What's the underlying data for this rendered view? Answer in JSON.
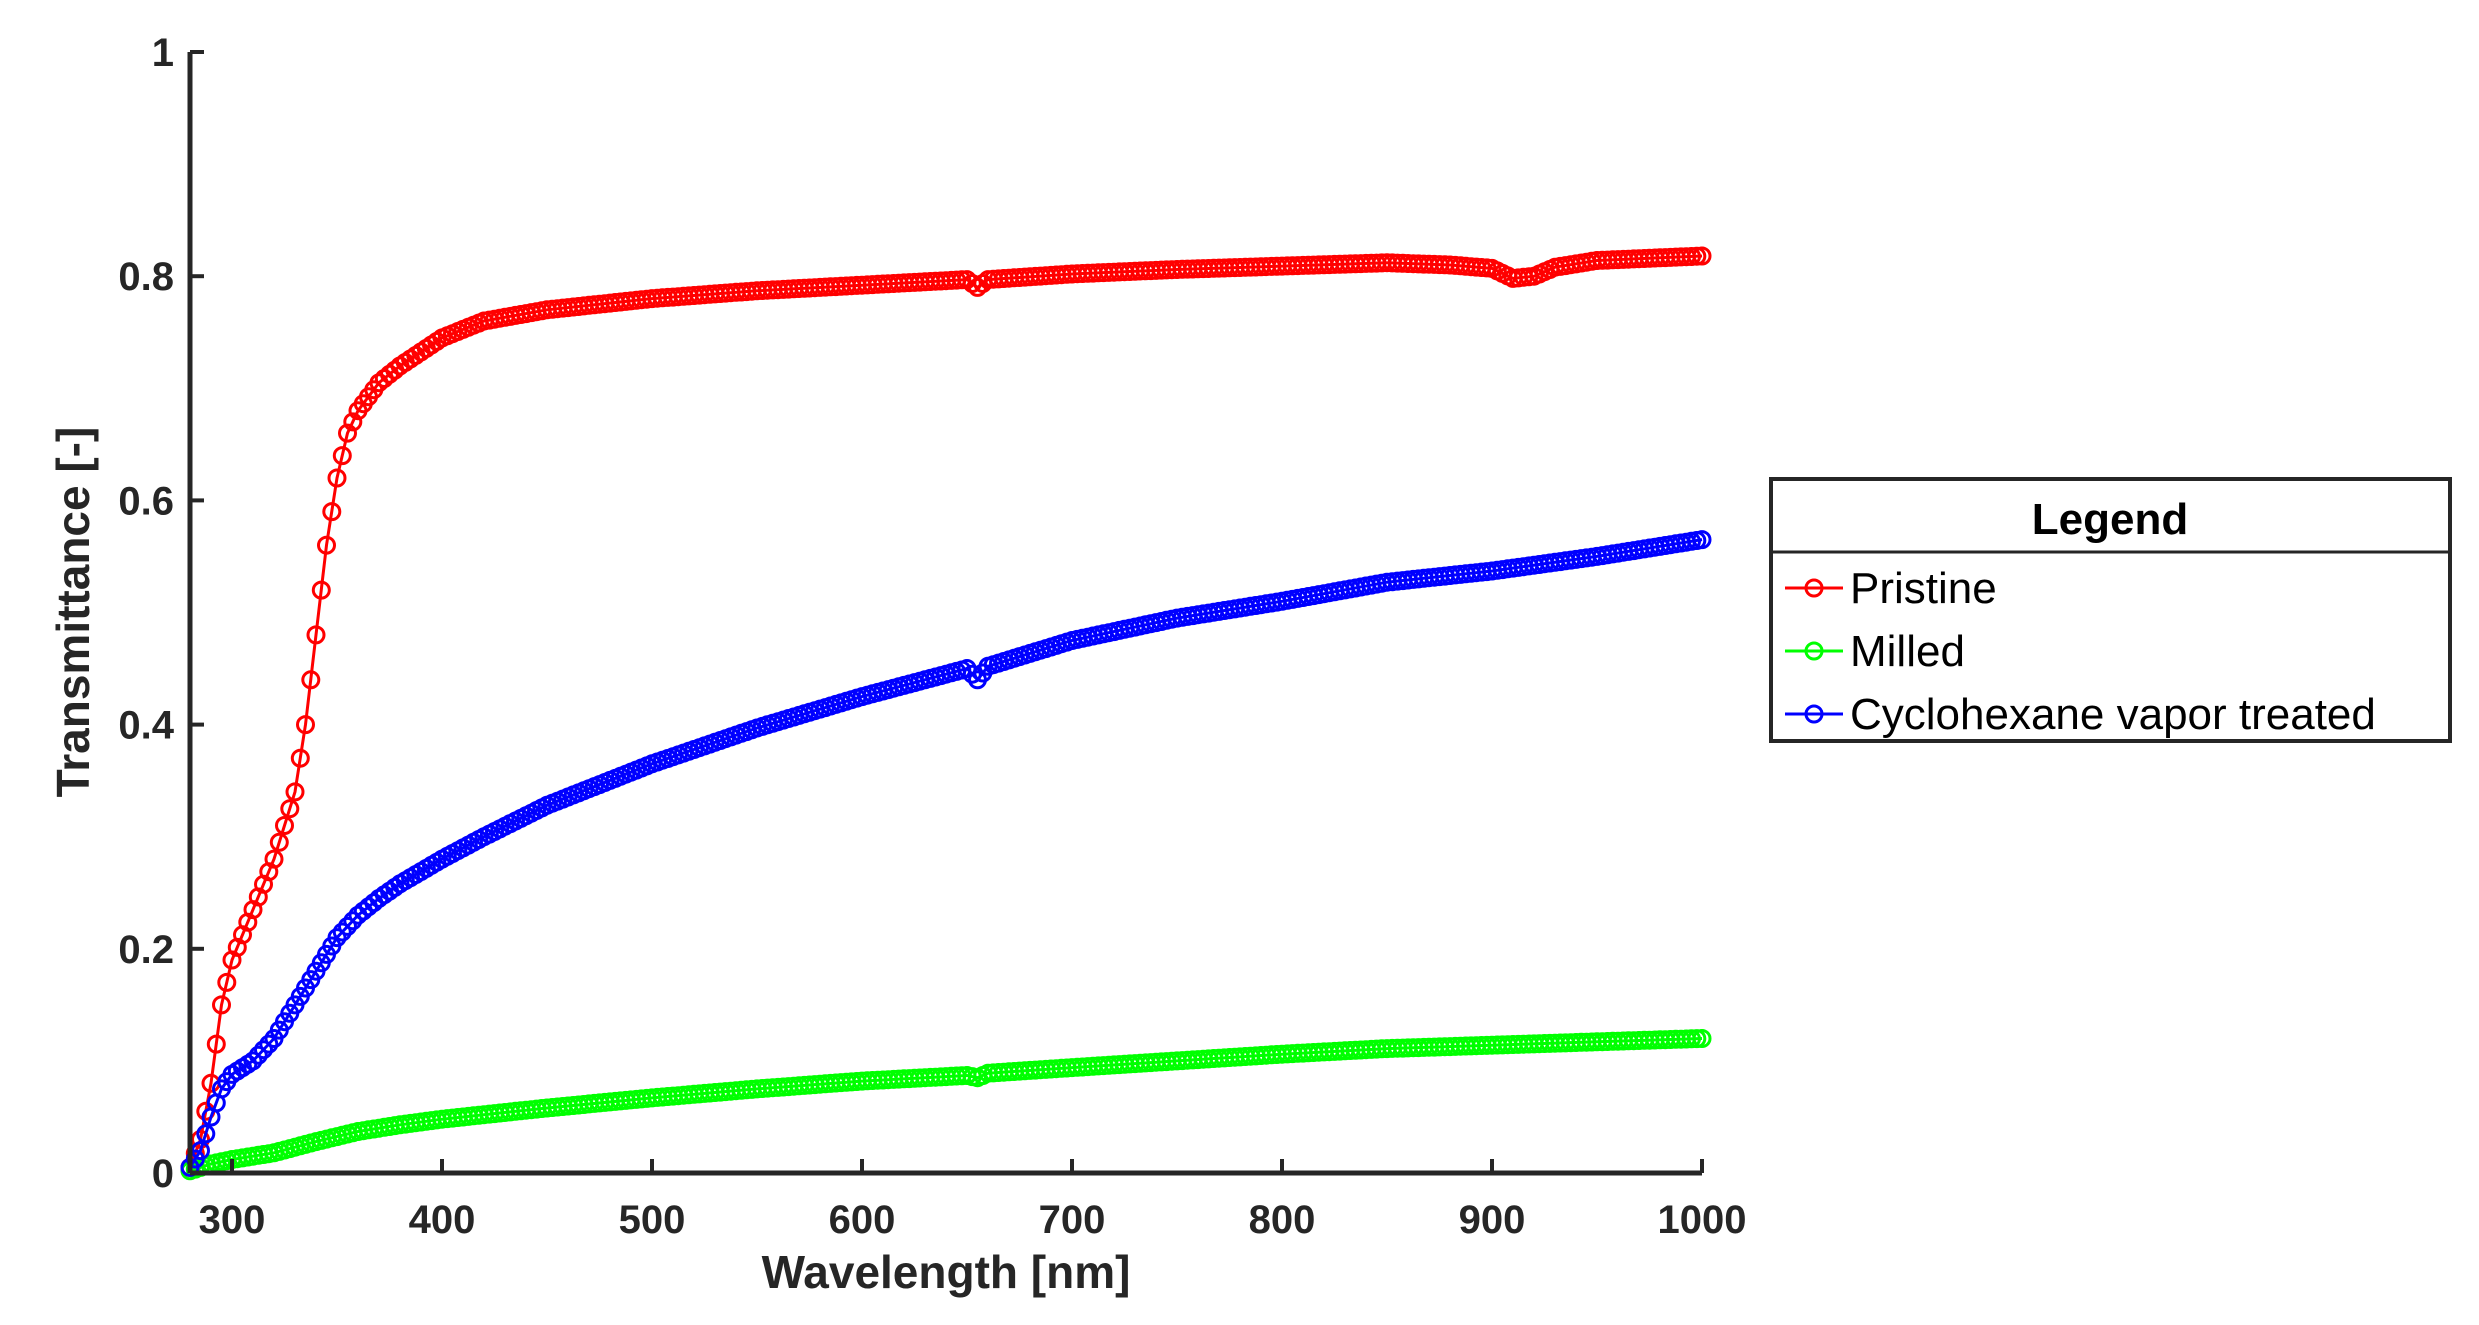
{
  "chart_data": {
    "type": "line",
    "title": "",
    "xlabel": "Wavelength [nm]",
    "ylabel": "Transmittance [-]",
    "xlim": [
      280,
      1000
    ],
    "ylim": [
      0,
      1
    ],
    "xticks": [
      300,
      400,
      500,
      600,
      700,
      800,
      900,
      1000
    ],
    "yticks": [
      0,
      0.2,
      0.4,
      0.6,
      0.8,
      1
    ],
    "ytick_labels": [
      "0",
      "0.2",
      "0.4",
      "0.6",
      "0.8",
      "1"
    ],
    "grid": false,
    "marker": "circle",
    "legend": {
      "title": "Legend",
      "position": "outside-right"
    },
    "series": [
      {
        "name": "Pristine",
        "color": "#ff0000",
        "x": [
          280,
          285,
          290,
          295,
          300,
          310,
          320,
          330,
          335,
          340,
          345,
          350,
          355,
          360,
          370,
          380,
          400,
          420,
          450,
          500,
          550,
          600,
          650,
          655,
          660,
          700,
          750,
          800,
          850,
          880,
          900,
          910,
          920,
          930,
          950,
          1000
        ],
        "y": [
          0.005,
          0.03,
          0.08,
          0.15,
          0.19,
          0.235,
          0.28,
          0.34,
          0.4,
          0.48,
          0.56,
          0.62,
          0.66,
          0.68,
          0.705,
          0.72,
          0.745,
          0.76,
          0.77,
          0.78,
          0.787,
          0.792,
          0.797,
          0.79,
          0.797,
          0.802,
          0.806,
          0.809,
          0.812,
          0.81,
          0.807,
          0.798,
          0.8,
          0.808,
          0.814,
          0.818
        ]
      },
      {
        "name": "Milled",
        "color": "#00ff00",
        "x": [
          280,
          290,
          300,
          320,
          340,
          360,
          380,
          400,
          450,
          500,
          550,
          600,
          650,
          655,
          660,
          700,
          750,
          800,
          850,
          900,
          950,
          1000
        ],
        "y": [
          0.002,
          0.008,
          0.012,
          0.018,
          0.028,
          0.037,
          0.043,
          0.048,
          0.058,
          0.067,
          0.075,
          0.082,
          0.087,
          0.085,
          0.089,
          0.094,
          0.1,
          0.106,
          0.111,
          0.114,
          0.117,
          0.12
        ]
      },
      {
        "name": "Cyclohexane vapor treated",
        "color": "#0000ff",
        "x": [
          280,
          285,
          290,
          295,
          300,
          310,
          320,
          330,
          340,
          350,
          360,
          370,
          380,
          400,
          420,
          450,
          500,
          550,
          600,
          650,
          655,
          660,
          700,
          750,
          800,
          850,
          900,
          950,
          1000
        ],
        "y": [
          0.005,
          0.02,
          0.05,
          0.075,
          0.088,
          0.1,
          0.12,
          0.15,
          0.18,
          0.21,
          0.23,
          0.245,
          0.258,
          0.28,
          0.3,
          0.328,
          0.365,
          0.397,
          0.425,
          0.45,
          0.44,
          0.452,
          0.475,
          0.495,
          0.51,
          0.527,
          0.537,
          0.55,
          0.565
        ]
      }
    ]
  }
}
